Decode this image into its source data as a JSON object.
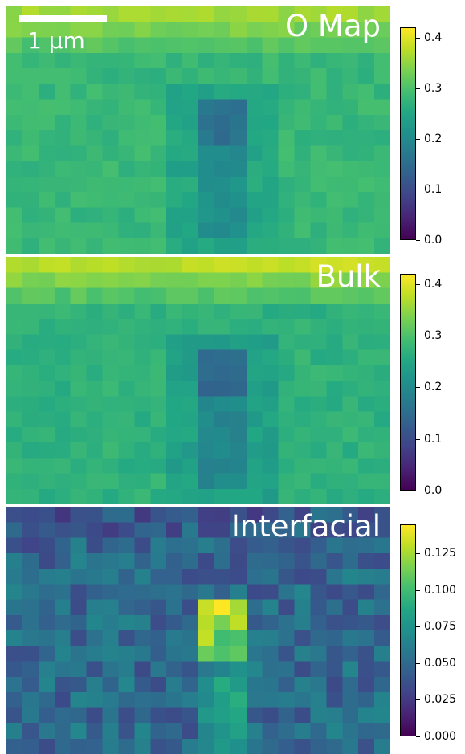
{
  "chart_data": [
    {
      "type": "heatmap",
      "title": "O Map",
      "scalebar_label": "1 µm",
      "colormap": "viridis",
      "vmin": 0.0,
      "vmax": 0.42,
      "colorbar_ticks": [
        "0.0",
        "0.1",
        "0.2",
        "0.3",
        "0.4"
      ],
      "colorbar_tick_values": [
        0.0,
        0.1,
        0.2,
        0.3,
        0.4
      ],
      "grid": "24x16 pixels",
      "background_level": 0.28,
      "top_edge_level": 0.36,
      "feature": {
        "description_level": 0.12,
        "type": "vertical dark streak at center"
      }
    },
    {
      "type": "heatmap",
      "title": "Bulk",
      "colormap": "viridis",
      "vmin": 0.0,
      "vmax": 0.42,
      "colorbar_ticks": [
        "0.0",
        "0.1",
        "0.2",
        "0.3",
        "0.4"
      ],
      "colorbar_tick_values": [
        0.0,
        0.1,
        0.2,
        0.3,
        0.4
      ],
      "grid": "24x16 pixels",
      "background_level": 0.27,
      "top_edge_level": 0.38,
      "feature": {
        "description_level": 0.1,
        "type": "vertical dark streak at center"
      }
    },
    {
      "type": "heatmap",
      "title": "Interfacial",
      "colormap": "viridis",
      "vmin": 0.0,
      "vmax": 0.145,
      "colorbar_ticks": [
        "0.000",
        "0.025",
        "0.050",
        "0.075",
        "0.100",
        "0.125"
      ],
      "colorbar_tick_values": [
        0.0,
        0.025,
        0.05,
        0.075,
        0.1,
        0.125
      ],
      "grid": "24x16 pixels",
      "background_level": 0.05,
      "top_edge_level": 0.04,
      "feature": {
        "description_level": 0.14,
        "type": "bright spot at center with faint tail"
      }
    }
  ]
}
